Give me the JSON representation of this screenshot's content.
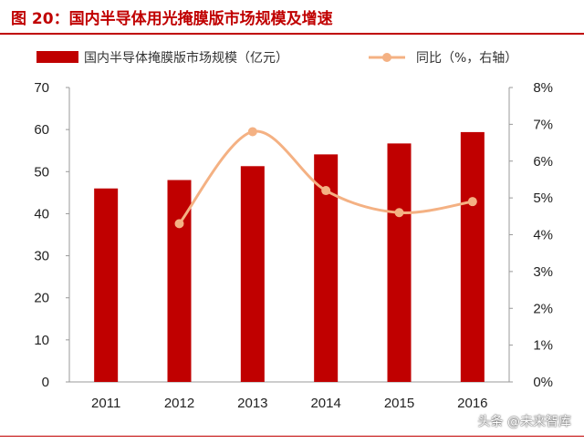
{
  "figure_title": "图 20：国内半导体用光掩膜版市场规模及增速",
  "watermark": "头条 @未来智库",
  "colors": {
    "bar": "#c00000",
    "line": "#f4b183",
    "title": "#c00000"
  },
  "chart_data": {
    "type": "bar",
    "categories": [
      "2011",
      "2012",
      "2013",
      "2014",
      "2015",
      "2016"
    ],
    "series": [
      {
        "name": "国内半导体掩膜版市场规模（亿元）",
        "type": "bar",
        "axis": "left",
        "values": [
          46,
          48,
          51.3,
          54.1,
          56.7,
          59.4
        ]
      },
      {
        "name": "同比（%，右轴）",
        "type": "line",
        "axis": "right",
        "smooth": true,
        "values": [
          null,
          4.3,
          6.8,
          5.2,
          4.6,
          4.9
        ]
      }
    ],
    "y_left": {
      "lim": [
        0,
        70
      ],
      "ticks": [
        "0",
        "10",
        "20",
        "30",
        "40",
        "50",
        "60",
        "70"
      ]
    },
    "y_right": {
      "lim": [
        0,
        8
      ],
      "ticks": [
        "0%",
        "1%",
        "2%",
        "3%",
        "4%",
        "5%",
        "6%",
        "7%",
        "8%"
      ]
    },
    "legend_position": "top",
    "grid": false
  }
}
